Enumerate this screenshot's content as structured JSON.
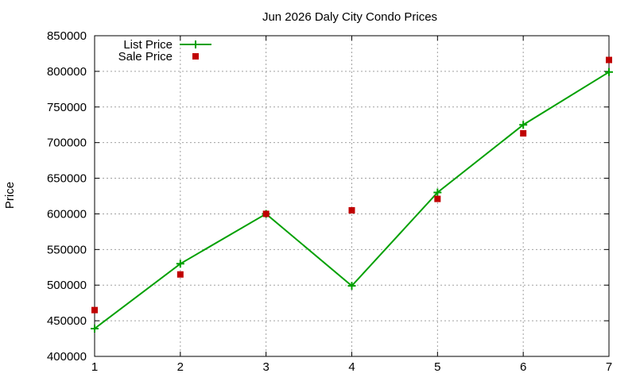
{
  "chart_data": {
    "type": "line",
    "title": "Jun 2026 Daly City Condo Prices",
    "xlabel": "",
    "ylabel": "Price",
    "x": [
      1,
      2,
      3,
      4,
      5,
      6,
      7
    ],
    "xlim": [
      1,
      7
    ],
    "ylim": [
      400000,
      850000
    ],
    "x_ticks": [
      "1",
      "2",
      "3",
      "4",
      "5",
      "6",
      "7"
    ],
    "y_ticks": [
      "400000",
      "450000",
      "500000",
      "550000",
      "600000",
      "650000",
      "700000",
      "750000",
      "800000",
      "850000"
    ],
    "grid": true,
    "legend_position": "top-left",
    "series": [
      {
        "name": "List Price",
        "style": "line-with-plus-markers",
        "color": "#00a000",
        "values": [
          439000,
          530000,
          600000,
          499000,
          630000,
          725000,
          799000
        ]
      },
      {
        "name": "Sale Price",
        "style": "square-markers",
        "color": "#c00000",
        "values": [
          465000,
          515000,
          600000,
          605000,
          621000,
          713000,
          816000
        ]
      }
    ]
  }
}
